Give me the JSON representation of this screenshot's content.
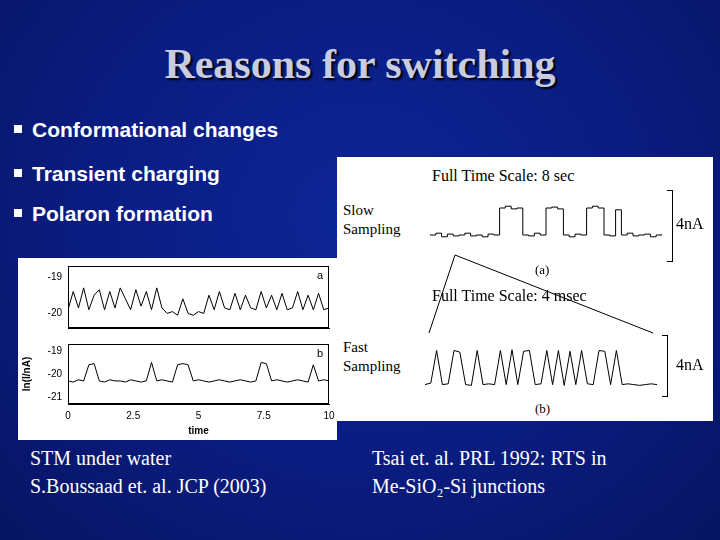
{
  "slide": {
    "title": "Reasons for switching",
    "bullets": [
      "Conformational changes",
      "Transient charging",
      "Polaron formation"
    ],
    "captions": [
      [
        "STM under water",
        "S.Boussaad et. al. JCP (2003)"
      ],
      [
        "Tsai et. al. PRL 1992: RTS in",
        "Me-SiO₂-Si junctions"
      ]
    ]
  },
  "chart_data": [
    {
      "type": "line",
      "annotations": [
        "a"
      ],
      "color": "#000000",
      "line_style": "solid",
      "grid": false,
      "tick_labels": "y",
      "x": [
        0,
        0.2,
        0.4,
        0.6,
        0.8,
        1.0,
        1.2,
        1.4,
        1.6,
        1.8,
        2.0,
        2.2,
        2.4,
        2.6,
        2.8,
        3.0,
        3.2,
        3.4,
        3.6,
        3.8,
        4.0,
        4.2,
        4.4,
        4.6,
        4.8,
        5.0,
        5.2,
        5.4,
        5.6,
        5.8,
        6.0,
        6.2,
        6.4,
        6.6,
        6.8,
        7.0,
        7.2,
        7.4,
        7.6,
        7.8,
        8.0,
        8.2,
        8.4,
        8.6,
        8.8,
        9.0,
        9.2,
        9.4,
        9.6,
        9.8,
        10.0
      ],
      "values": [
        -19.9,
        -19.4,
        -19.85,
        -19.3,
        -19.9,
        -19.5,
        -19.35,
        -19.9,
        -19.4,
        -19.85,
        -19.3,
        -19.6,
        -19.9,
        -19.35,
        -19.8,
        -19.4,
        -19.9,
        -19.3,
        -19.85,
        -20.0,
        -19.95,
        -20.05,
        -19.6,
        -20.0,
        -20.05,
        -19.95,
        -20.0,
        -19.5,
        -19.9,
        -19.4,
        -19.85,
        -19.9,
        -19.45,
        -19.9,
        -19.5,
        -19.85,
        -19.9,
        -19.4,
        -19.85,
        -19.5,
        -19.9,
        -19.45,
        -19.9,
        -19.85,
        -19.4,
        -19.9,
        -19.5,
        -19.9,
        -19.45,
        -19.9,
        -19.85
      ],
      "xlim": [
        0,
        10
      ],
      "ylim": [
        -20.4,
        -18.7
      ],
      "yticks": [
        -19,
        -20
      ]
    },
    {
      "type": "line",
      "annotations": [
        "b"
      ],
      "color": "#000000",
      "line_style": "solid",
      "grid": false,
      "xlabel": "time",
      "ylabel": "ln(I/nA)",
      "x": [
        0,
        0.2,
        0.4,
        0.6,
        0.8,
        1.0,
        1.2,
        1.4,
        1.6,
        1.8,
        2.0,
        2.2,
        2.4,
        2.6,
        2.8,
        3.0,
        3.2,
        3.4,
        3.6,
        3.8,
        4.0,
        4.2,
        4.4,
        4.6,
        4.8,
        5.0,
        5.2,
        5.4,
        5.6,
        5.8,
        6.0,
        6.2,
        6.4,
        6.6,
        6.8,
        7.0,
        7.2,
        7.4,
        7.6,
        7.8,
        8.0,
        8.2,
        8.4,
        8.6,
        8.8,
        9.0,
        9.2,
        9.4,
        9.6,
        9.8,
        10.0
      ],
      "values": [
        -20.3,
        -20.35,
        -20.25,
        -20.3,
        -19.6,
        -19.55,
        -20.3,
        -20.35,
        -20.25,
        -20.3,
        -20.3,
        -20.35,
        -20.25,
        -20.3,
        -20.35,
        -20.3,
        -19.5,
        -20.3,
        -20.25,
        -20.3,
        -20.35,
        -19.6,
        -19.55,
        -19.6,
        -20.3,
        -20.25,
        -20.3,
        -20.35,
        -20.3,
        -20.25,
        -20.3,
        -20.35,
        -20.3,
        -20.25,
        -20.3,
        -20.35,
        -20.3,
        -19.5,
        -19.55,
        -20.3,
        -20.25,
        -20.3,
        -20.35,
        -20.3,
        -20.25,
        -20.3,
        -20.35,
        -19.6,
        -20.3,
        -20.25,
        -20.3
      ],
      "xlim": [
        0,
        10
      ],
      "xticks": [
        0,
        2.5,
        5,
        7.5,
        10
      ],
      "ylim": [
        -21.3,
        -18.7
      ],
      "yticks": [
        -19,
        -20,
        -21
      ]
    },
    {
      "type": "line",
      "title": "Full Time Scale: 8 sec",
      "annotations": [
        "Slow Sampling",
        "4nA",
        "(a)"
      ],
      "color": "#000000",
      "line_style": "steps",
      "grid": false,
      "tick_labels": false,
      "x": [
        0,
        0.2,
        0.4,
        0.6,
        0.8,
        1.0,
        1.2,
        1.4,
        1.6,
        1.8,
        2.0,
        2.2,
        2.4,
        2.6,
        2.8,
        3.0,
        3.2,
        3.4,
        3.6,
        3.8,
        4.0,
        4.2,
        4.4,
        4.6,
        4.8,
        5.0,
        5.2,
        5.4,
        5.6,
        5.8,
        6.0,
        6.2,
        6.4,
        6.6,
        6.8,
        7.0,
        7.2,
        7.4,
        7.6,
        7.8,
        8.0
      ],
      "values": [
        1.5,
        1.6,
        1.4,
        1.55,
        1.45,
        1.5,
        1.6,
        1.45,
        1.5,
        1.4,
        1.55,
        1.5,
        3.0,
        3.1,
        2.95,
        3.0,
        1.5,
        1.45,
        1.6,
        1.5,
        3.0,
        3.05,
        2.95,
        1.5,
        1.4,
        1.55,
        1.5,
        3.0,
        3.1,
        3.0,
        1.5,
        1.45,
        2.9,
        1.5,
        1.6,
        1.45,
        1.5,
        1.55,
        1.4,
        1.5,
        1.55
      ],
      "xlim": [
        0,
        8
      ],
      "ylim": [
        0,
        4
      ]
    },
    {
      "type": "line",
      "title": "Full Time Scale: 4 msec",
      "annotations": [
        "Fast Sampling",
        "4nA",
        "(b)"
      ],
      "color": "#000000",
      "line_style": "solid",
      "grid": false,
      "tick_labels": false,
      "x": [
        0,
        0.1,
        0.2,
        0.3,
        0.4,
        0.5,
        0.6,
        0.7,
        0.8,
        0.9,
        1.0,
        1.1,
        1.2,
        1.3,
        1.4,
        1.5,
        1.6,
        1.7,
        1.8,
        1.9,
        2.0,
        2.1,
        2.2,
        2.3,
        2.4,
        2.5,
        2.6,
        2.7,
        2.8,
        2.9,
        3.0,
        3.1,
        3.2,
        3.3,
        3.4,
        3.5,
        3.6,
        3.7,
        3.8,
        3.9,
        4.0
      ],
      "values": [
        0.8,
        0.9,
        3.0,
        0.8,
        0.85,
        3.0,
        2.9,
        0.8,
        0.75,
        3.0,
        0.8,
        0.85,
        0.8,
        3.0,
        0.8,
        3.05,
        0.8,
        2.95,
        3.0,
        0.8,
        0.85,
        3.0,
        0.8,
        3.0,
        0.75,
        2.95,
        0.8,
        3.0,
        0.85,
        0.8,
        3.0,
        2.95,
        0.8,
        3.0,
        0.8,
        0.85,
        0.8,
        0.75,
        0.8,
        0.85,
        0.8
      ],
      "xlim": [
        0,
        4
      ],
      "ylim": [
        0,
        4
      ]
    }
  ]
}
